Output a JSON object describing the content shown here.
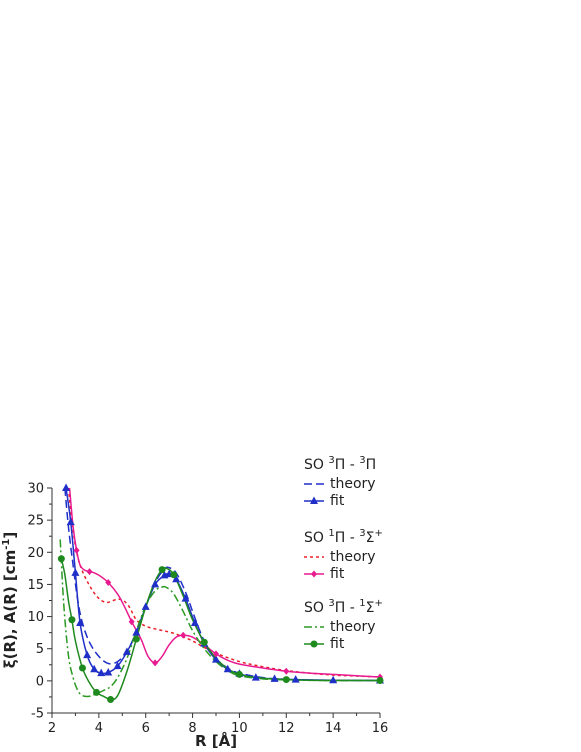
{
  "chart_data": {
    "type": "line",
    "title": "",
    "xlabel": "R [Å]",
    "ylabel": "ξ(R), A(R) [cm-1]",
    "xlim": [
      2,
      16
    ],
    "ylim": [
      -5,
      30
    ],
    "xticks": [
      "2",
      "4",
      "6",
      "8",
      "10",
      "12",
      "14",
      "16"
    ],
    "yticks": [
      "-5",
      "0",
      "5",
      "10",
      "15",
      "20",
      "25",
      "30"
    ],
    "grid": false,
    "legend_position": "top-right",
    "legend_groups": [
      {
        "title_base": "SO ",
        "sup1": "3",
        "mid": "Π - ",
        "sup2": "3",
        "end": "Π",
        "sup3": "",
        "theory_label": "theory",
        "fit_label": "fit"
      },
      {
        "title_base": "SO ",
        "sup1": "1",
        "mid": "Π - ",
        "sup2": "3",
        "end": "Σ",
        "sup3": "+",
        "theory_label": "theory",
        "fit_label": "fit"
      },
      {
        "title_base": "SO ",
        "sup1": "3",
        "mid": "Π - ",
        "sup2": "1",
        "end": "Σ",
        "sup3": "+",
        "theory_label": "theory",
        "fit_label": "fit"
      }
    ],
    "series": [
      {
        "group": 0,
        "kind": "theory",
        "color": "#1f2fc8",
        "dash": "8,4",
        "x": [
          2.55,
          2.7,
          2.9,
          3.1,
          3.3,
          3.6,
          4.0,
          4.4,
          4.8,
          5.2,
          5.6,
          6.0,
          6.4,
          6.8,
          7.0,
          7.3,
          7.7,
          8.1,
          8.5,
          9.0,
          9.5,
          10.0,
          11.0,
          12.0,
          13.0,
          14.0,
          16.0
        ],
        "y": [
          30,
          24,
          18,
          12.5,
          9,
          6,
          3.8,
          2.7,
          3.0,
          4.6,
          7.6,
          11.6,
          15.3,
          17.4,
          17.6,
          16.8,
          13.8,
          9.8,
          6.2,
          3.5,
          2.0,
          1.2,
          0.5,
          0.25,
          0.12,
          0.08,
          0.05
        ]
      },
      {
        "group": 0,
        "kind": "fit",
        "color": "#1f2fc8",
        "marker": "triangle",
        "x": [
          2.6,
          2.8,
          3.0,
          3.2,
          3.5,
          3.8,
          4.1,
          4.4,
          4.8,
          5.2,
          5.6,
          6.0,
          6.4,
          6.8,
          7.0,
          7.3,
          7.7,
          8.1,
          8.5,
          9.0,
          9.5,
          10.0,
          10.7,
          11.5,
          12.4,
          14.0,
          16.0
        ],
        "y": [
          30,
          24.7,
          16.8,
          9.0,
          4.0,
          1.8,
          1.2,
          1.3,
          2.3,
          4.5,
          7.5,
          11.5,
          15.0,
          16.4,
          16.6,
          15.8,
          12.8,
          9.0,
          5.8,
          3.3,
          1.8,
          1.1,
          0.5,
          0.3,
          0.2,
          0.1,
          0.05
        ],
        "marker_x": [
          2.6,
          2.8,
          3.0,
          3.2,
          3.5,
          3.8,
          4.1,
          4.4,
          4.8,
          5.2,
          5.6,
          6.0,
          6.4,
          6.8,
          7.0,
          7.3,
          7.7,
          8.1,
          8.5,
          9.0,
          9.5,
          10.0,
          10.7,
          11.5,
          12.4,
          14.0,
          16.0
        ]
      },
      {
        "group": 1,
        "kind": "theory",
        "color": "#e8202a",
        "dash": "3,3",
        "x": [
          2.7,
          2.85,
          3.0,
          3.2,
          3.5,
          3.9,
          4.3,
          4.7,
          5.0,
          5.3,
          5.6,
          6.0,
          6.5,
          7.0,
          7.5,
          8.0,
          8.5,
          9.0,
          10.0,
          11.0,
          12.0,
          13.0,
          14.0,
          15.0,
          16.0
        ],
        "y": [
          30,
          25,
          21,
          18,
          15.5,
          13.2,
          12.2,
          12.6,
          12.6,
          11.5,
          9.5,
          8.5,
          8.0,
          7.6,
          7.0,
          6.2,
          5.2,
          4.3,
          3.0,
          2.2,
          1.6,
          1.2,
          0.9,
          0.75,
          0.6
        ]
      },
      {
        "group": 1,
        "kind": "fit",
        "color": "#e81a8f",
        "marker": "diamond",
        "x": [
          2.75,
          2.9,
          3.05,
          3.2,
          3.4,
          3.6,
          3.8,
          4.1,
          4.4,
          4.8,
          5.1,
          5.4,
          5.8,
          6.1,
          6.4,
          6.7,
          7.0,
          7.3,
          7.6,
          8.0,
          8.5,
          9.0,
          9.5,
          10.0,
          11.0,
          12.0,
          13.0,
          14.0,
          15.0,
          16.0
        ],
        "y": [
          30,
          24,
          20.3,
          18,
          17.2,
          17.0,
          16.8,
          16.2,
          15.3,
          13.5,
          11.5,
          9.2,
          6.5,
          3.8,
          2.8,
          3.8,
          5.6,
          6.8,
          7.1,
          6.8,
          5.6,
          4.2,
          3.2,
          2.6,
          2.0,
          1.5,
          1.2,
          1.0,
          0.8,
          0.6
        ],
        "marker_x": [
          3.05,
          3.6,
          4.4,
          5.4,
          6.4,
          7.6,
          9.0,
          12.0,
          16.0
        ]
      },
      {
        "group": 2,
        "kind": "theory",
        "color": "#2a9a22",
        "dash": "8,3,2,3",
        "x": [
          2.35,
          2.5,
          2.7,
          2.9,
          3.1,
          3.3,
          3.6,
          3.9,
          4.2,
          4.5,
          4.8,
          5.2,
          5.6,
          6.0,
          6.4,
          6.7,
          6.9,
          7.2,
          7.6,
          8.0,
          8.5,
          9.0,
          9.5,
          10.0,
          11.0,
          12.0,
          13.0,
          14.0,
          16.0
        ],
        "y": [
          22,
          12,
          4,
          0.5,
          -1.5,
          -2.3,
          -2.4,
          -2.0,
          -1.5,
          -0.9,
          0.5,
          3.5,
          7.8,
          11.7,
          14.0,
          14.6,
          14.5,
          13.5,
          10.8,
          7.8,
          5.0,
          3.0,
          1.6,
          0.8,
          0.3,
          0.15,
          0.08,
          0.05,
          0.05
        ]
      },
      {
        "group": 2,
        "kind": "fit",
        "color": "#1e8a1e",
        "marker": "circle",
        "x": [
          2.4,
          2.55,
          2.7,
          2.85,
          3.0,
          3.3,
          3.6,
          3.9,
          4.2,
          4.5,
          4.8,
          5.2,
          5.6,
          6.0,
          6.4,
          6.7,
          6.9,
          7.2,
          7.6,
          8.0,
          8.5,
          9.0,
          9.5,
          10.0,
          11.0,
          12.0,
          13.0,
          14.0,
          16.0
        ],
        "y": [
          19,
          16.5,
          12.5,
          9.5,
          6.2,
          2.0,
          -0.3,
          -1.8,
          -2.4,
          -2.9,
          -2.3,
          1.5,
          6.5,
          11.5,
          15.5,
          17.3,
          17.5,
          16.5,
          13.2,
          9.5,
          6.0,
          3.5,
          1.9,
          1.0,
          0.4,
          0.2,
          0.1,
          0.05,
          0.05
        ],
        "marker_x": [
          2.4,
          2.85,
          3.3,
          3.9,
          4.5,
          5.6,
          6.7,
          7.2,
          8.5,
          10.0,
          12.0,
          16.0
        ]
      }
    ]
  }
}
